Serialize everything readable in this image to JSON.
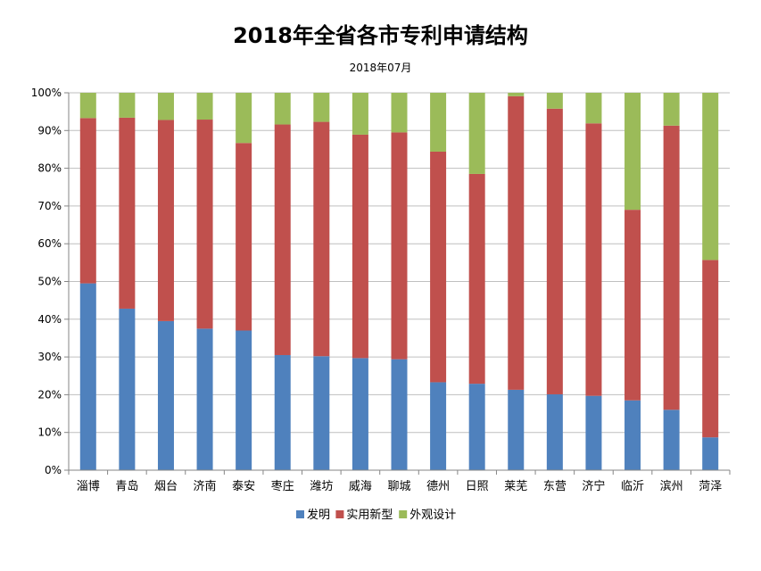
{
  "chart_data": {
    "type": "bar",
    "stacked": true,
    "title": "2018年全省各市专利申请结构",
    "subtitle": "2018年07月",
    "categories": [
      "淄博",
      "青岛",
      "烟台",
      "济南",
      "泰安",
      "枣庄",
      "潍坊",
      "威海",
      "聊城",
      "德州",
      "日照",
      "莱芜",
      "东营",
      "济宁",
      "临沂",
      "滨州",
      "菏泽"
    ],
    "series": [
      {
        "name": "发明",
        "color": "#4f81bd",
        "values": [
          49.5,
          42.8,
          39.5,
          37.5,
          37.0,
          30.5,
          30.2,
          29.7,
          29.4,
          23.3,
          22.9,
          21.3,
          20.1,
          19.7,
          18.5,
          16.0,
          8.7
        ]
      },
      {
        "name": "实用新型",
        "color": "#c0504d",
        "values": [
          43.8,
          50.6,
          53.3,
          55.4,
          49.7,
          61.1,
          62.1,
          59.2,
          60.1,
          61.1,
          55.6,
          77.8,
          75.7,
          72.2,
          50.5,
          75.3,
          47.0
        ]
      },
      {
        "name": "外观设计",
        "color": "#9bbb59",
        "values": [
          6.7,
          6.6,
          7.2,
          7.1,
          13.3,
          8.4,
          7.7,
          11.1,
          10.5,
          15.6,
          21.5,
          0.9,
          4.2,
          8.1,
          31.0,
          8.7,
          44.3
        ]
      }
    ],
    "ylim": [
      0,
      100
    ],
    "yticks": [
      "0%",
      "10%",
      "20%",
      "30%",
      "40%",
      "50%",
      "60%",
      "70%",
      "80%",
      "90%",
      "100%"
    ],
    "grid": true,
    "legend_position": "bottom"
  }
}
